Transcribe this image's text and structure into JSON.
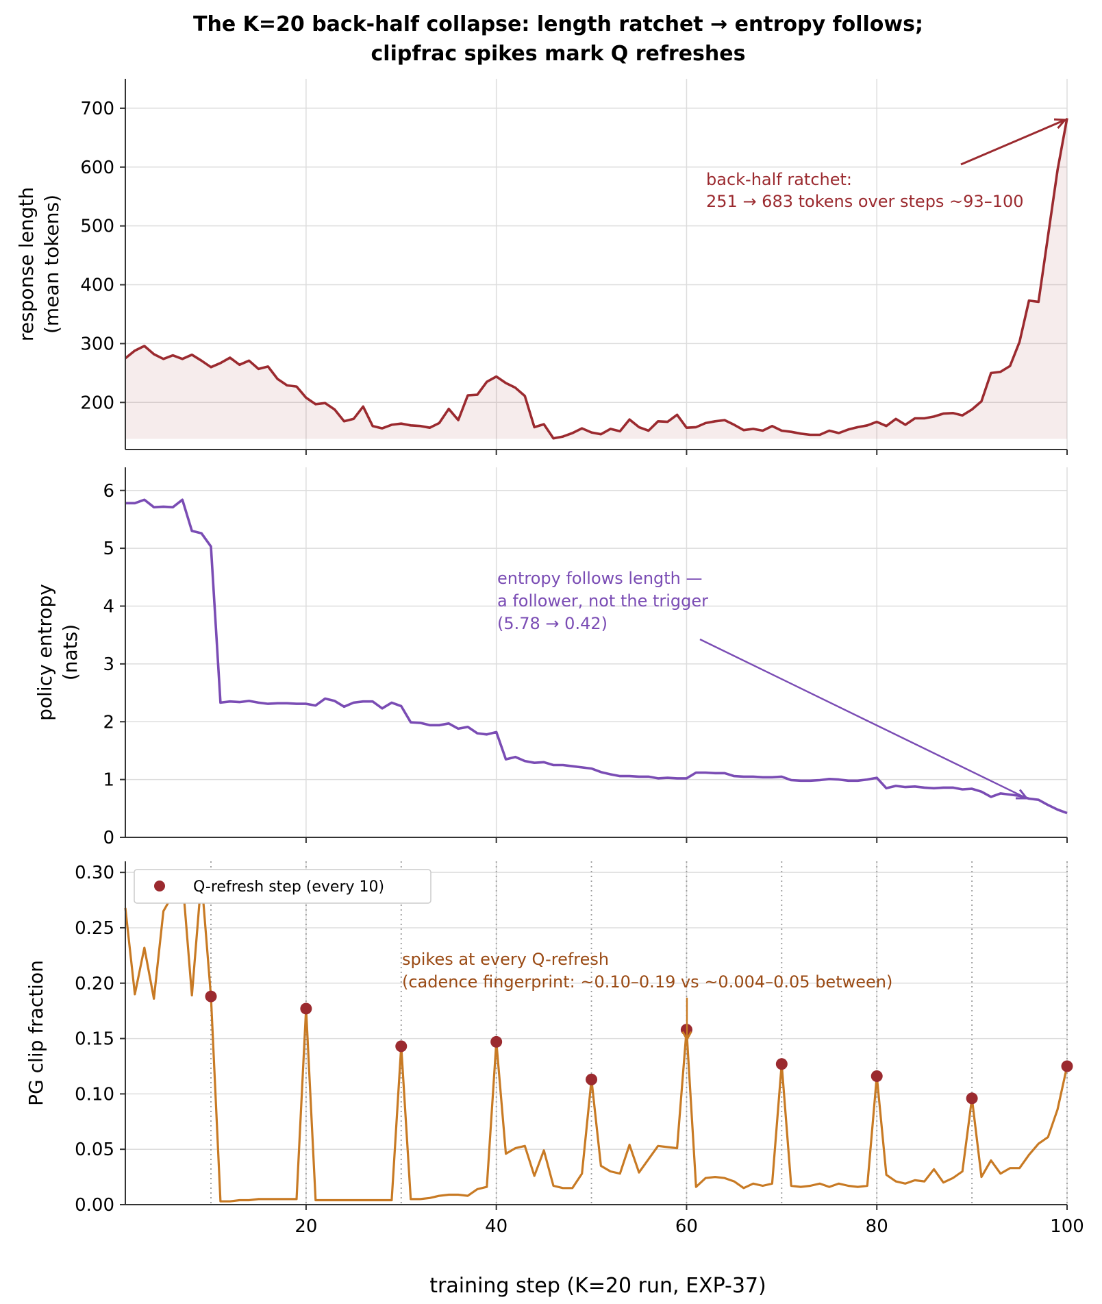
{
  "title_line1": "The K=20 back-half collapse: length ratchet → entropy follows;",
  "title_line2": "clipfrac spikes mark Q refreshes",
  "xlabel": "training step (K=20 run, EXP-37)",
  "x_ticks": [
    "20",
    "40",
    "60",
    "80",
    "100"
  ],
  "colors": {
    "length": "#9b2a2f",
    "entropy": "#7a4cb4",
    "clipfrac": "#c87a24",
    "refresh": "#9b2a2f",
    "annot_clip": "#9a4a14"
  },
  "chart_data": [
    {
      "type": "area",
      "ylabel_line1": "response length",
      "ylabel_line2": "(mean tokens)",
      "y_ticks": [
        "200",
        "300",
        "400",
        "500",
        "600",
        "700"
      ],
      "ylim": [
        120,
        750
      ],
      "xlim": [
        1,
        100
      ],
      "grid": true,
      "series": [
        {
          "x": [
            1,
            2,
            3,
            4,
            5,
            6,
            7,
            8,
            9,
            10,
            11,
            12,
            13,
            14,
            15,
            16,
            17,
            18,
            19,
            20,
            21,
            22,
            23,
            24,
            25,
            26,
            27,
            28,
            29,
            30,
            31,
            32,
            33,
            34,
            35,
            36,
            37,
            38,
            39,
            40,
            41,
            42,
            43,
            44,
            45,
            46,
            47,
            48,
            49,
            50,
            51,
            52,
            53,
            54,
            55,
            56,
            57,
            58,
            59,
            60,
            61,
            62,
            63,
            64,
            65,
            66,
            67,
            68,
            69,
            70,
            71,
            72,
            73,
            74,
            75,
            76,
            77,
            78,
            79,
            80,
            81,
            82,
            83,
            84,
            85,
            86,
            87,
            88,
            89,
            90,
            91,
            92,
            93,
            94,
            95,
            96,
            97,
            98,
            99,
            100
          ],
          "values": [
            275,
            288,
            296,
            282,
            274,
            280,
            274,
            281,
            271,
            260,
            267,
            276,
            264,
            271,
            257,
            261,
            240,
            229,
            227,
            208,
            197,
            199,
            188,
            168,
            172,
            193,
            160,
            156,
            162,
            164,
            161,
            160,
            157,
            165,
            189,
            170,
            212,
            213,
            235,
            244,
            233,
            225,
            211,
            158,
            163,
            139,
            142,
            148,
            156,
            149,
            146,
            155,
            151,
            171,
            158,
            152,
            168,
            167,
            179,
            157,
            158,
            165,
            168,
            170,
            162,
            153,
            155,
            152,
            160,
            152,
            150,
            147,
            145,
            145,
            152,
            148,
            154,
            158,
            161,
            167,
            160,
            172,
            162,
            173,
            173,
            176,
            181,
            182,
            178,
            188,
            202,
            250,
            252,
            262,
            303,
            373,
            371,
            483,
            595,
            683
          ]
        }
      ],
      "annotation": {
        "line1": "back-half ratchet:",
        "line2": "251 → 683 tokens over steps ~93–100"
      }
    },
    {
      "type": "line",
      "ylabel_line1": "policy entropy",
      "ylabel_line2": "(nats)",
      "y_ticks": [
        "0",
        "1",
        "2",
        "3",
        "4",
        "5",
        "6"
      ],
      "ylim": [
        0,
        6.4
      ],
      "xlim": [
        1,
        100
      ],
      "grid": true,
      "series": [
        {
          "x": [
            1,
            2,
            3,
            4,
            5,
            6,
            7,
            8,
            9,
            10,
            11,
            12,
            13,
            14,
            15,
            16,
            17,
            18,
            19,
            20,
            21,
            22,
            23,
            24,
            25,
            26,
            27,
            28,
            29,
            30,
            31,
            32,
            33,
            34,
            35,
            36,
            37,
            38,
            39,
            40,
            41,
            42,
            43,
            44,
            45,
            46,
            47,
            48,
            49,
            50,
            51,
            52,
            53,
            54,
            55,
            56,
            57,
            58,
            59,
            60,
            61,
            62,
            63,
            64,
            65,
            66,
            67,
            68,
            69,
            70,
            71,
            72,
            73,
            74,
            75,
            76,
            77,
            78,
            79,
            80,
            81,
            82,
            83,
            84,
            85,
            86,
            87,
            88,
            89,
            90,
            91,
            92,
            93,
            94,
            95,
            96,
            97,
            98,
            99,
            100
          ],
          "values": [
            5.78,
            5.78,
            5.84,
            5.71,
            5.72,
            5.71,
            5.84,
            5.3,
            5.26,
            5.03,
            2.33,
            2.35,
            2.34,
            2.36,
            2.33,
            2.31,
            2.32,
            2.32,
            2.31,
            2.31,
            2.28,
            2.4,
            2.36,
            2.26,
            2.33,
            2.35,
            2.35,
            2.23,
            2.33,
            2.27,
            1.99,
            1.98,
            1.94,
            1.94,
            1.97,
            1.88,
            1.91,
            1.8,
            1.78,
            1.82,
            1.35,
            1.39,
            1.32,
            1.29,
            1.3,
            1.25,
            1.25,
            1.23,
            1.21,
            1.19,
            1.13,
            1.09,
            1.06,
            1.06,
            1.05,
            1.05,
            1.02,
            1.03,
            1.02,
            1.02,
            1.12,
            1.12,
            1.11,
            1.11,
            1.06,
            1.05,
            1.05,
            1.04,
            1.04,
            1.05,
            0.99,
            0.98,
            0.98,
            0.99,
            1.01,
            1.0,
            0.98,
            0.98,
            1.0,
            1.03,
            0.85,
            0.89,
            0.87,
            0.88,
            0.86,
            0.85,
            0.86,
            0.86,
            0.83,
            0.84,
            0.79,
            0.7,
            0.76,
            0.74,
            0.72,
            0.67,
            0.65,
            0.56,
            0.48,
            0.42
          ]
        }
      ],
      "annotation": {
        "line1": "entropy follows length —",
        "line2": "a follower, not the trigger",
        "line3": "(5.78 → 0.42)"
      }
    },
    {
      "type": "line",
      "ylabel_line1": "PG clip fraction",
      "y_ticks": [
        "0.00",
        "0.05",
        "0.10",
        "0.15",
        "0.20",
        "0.25",
        "0.30"
      ],
      "ylim": [
        0,
        0.31
      ],
      "xlim": [
        1,
        100
      ],
      "grid": true,
      "legend": "top-left",
      "series": [
        {
          "x": [
            1,
            2,
            3,
            4,
            5,
            6,
            7,
            8,
            9,
            10,
            11,
            12,
            13,
            14,
            15,
            16,
            17,
            18,
            19,
            20,
            21,
            22,
            23,
            24,
            25,
            26,
            27,
            28,
            29,
            30,
            31,
            32,
            33,
            34,
            35,
            36,
            37,
            38,
            39,
            40,
            41,
            42,
            43,
            44,
            45,
            46,
            47,
            48,
            49,
            50,
            51,
            52,
            53,
            54,
            55,
            56,
            57,
            58,
            59,
            60,
            61,
            62,
            63,
            64,
            65,
            66,
            67,
            68,
            69,
            70,
            71,
            72,
            73,
            74,
            75,
            76,
            77,
            78,
            79,
            80,
            81,
            82,
            83,
            84,
            85,
            86,
            87,
            88,
            89,
            90,
            91,
            92,
            93,
            94,
            95,
            96,
            97,
            98,
            99,
            100
          ],
          "values": [
            0.268,
            0.19,
            0.232,
            0.186,
            0.265,
            0.28,
            0.295,
            0.189,
            0.295,
            0.188,
            0.003,
            0.003,
            0.004,
            0.004,
            0.005,
            0.005,
            0.005,
            0.005,
            0.005,
            0.177,
            0.004,
            0.004,
            0.004,
            0.004,
            0.004,
            0.004,
            0.004,
            0.004,
            0.004,
            0.143,
            0.005,
            0.005,
            0.006,
            0.008,
            0.009,
            0.009,
            0.008,
            0.014,
            0.016,
            0.147,
            0.046,
            0.051,
            0.053,
            0.026,
            0.049,
            0.017,
            0.015,
            0.015,
            0.028,
            0.113,
            0.035,
            0.03,
            0.028,
            0.054,
            0.029,
            0.041,
            0.053,
            0.052,
            0.051,
            0.158,
            0.016,
            0.024,
            0.025,
            0.024,
            0.021,
            0.015,
            0.019,
            0.017,
            0.019,
            0.127,
            0.017,
            0.016,
            0.017,
            0.019,
            0.016,
            0.019,
            0.017,
            0.016,
            0.017,
            0.116,
            0.027,
            0.021,
            0.019,
            0.022,
            0.021,
            0.032,
            0.02,
            0.024,
            0.03,
            0.096,
            0.025,
            0.04,
            0.028,
            0.033,
            0.033,
            0.045,
            0.055,
            0.061,
            0.086,
            0.125
          ]
        }
      ],
      "refresh_steps": [
        10,
        20,
        30,
        40,
        50,
        60,
        70,
        80,
        90,
        100
      ],
      "refresh_values": [
        0.188,
        0.177,
        0.143,
        0.147,
        0.113,
        0.158,
        0.127,
        0.116,
        0.096,
        0.125
      ],
      "legend_label": "Q-refresh step (every 10)",
      "annotation": {
        "line1": "spikes at every Q-refresh",
        "line2": "(cadence fingerprint: ~0.10–0.19 vs ~0.004–0.05 between)"
      }
    }
  ]
}
